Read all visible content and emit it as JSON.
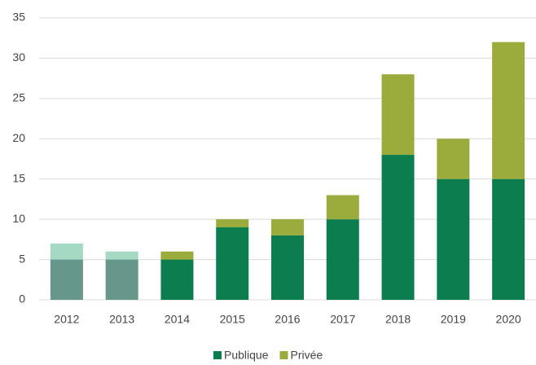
{
  "chart_data": {
    "type": "bar",
    "stacked": true,
    "categories": [
      "2012",
      "2013",
      "2014",
      "2015",
      "2016",
      "2017",
      "2018",
      "2019",
      "2020"
    ],
    "series": [
      {
        "name": "Publique",
        "color": "#0b7d4f",
        "values": [
          5,
          5,
          5,
          9,
          8,
          10,
          18,
          15,
          15
        ],
        "colors": [
          "#67978b",
          "#67978b",
          "#0b7d4f",
          "#0b7d4f",
          "#0b7d4f",
          "#0b7d4f",
          "#0b7d4f",
          "#0b7d4f",
          "#0b7d4f"
        ]
      },
      {
        "name": "Privée",
        "color": "#9bab3c",
        "values": [
          2,
          1,
          1,
          1,
          2,
          3,
          10,
          5,
          17
        ],
        "colors": [
          "#a5d9c3",
          "#a5d9c3",
          "#9bab3c",
          "#9bab3c",
          "#9bab3c",
          "#9bab3c",
          "#9bab3c",
          "#9bab3c",
          "#9bab3c"
        ]
      }
    ],
    "ylim": [
      0,
      35
    ],
    "yticks": [
      0,
      5,
      10,
      15,
      20,
      25,
      30,
      35
    ],
    "grid": true,
    "legend": "bottom"
  }
}
